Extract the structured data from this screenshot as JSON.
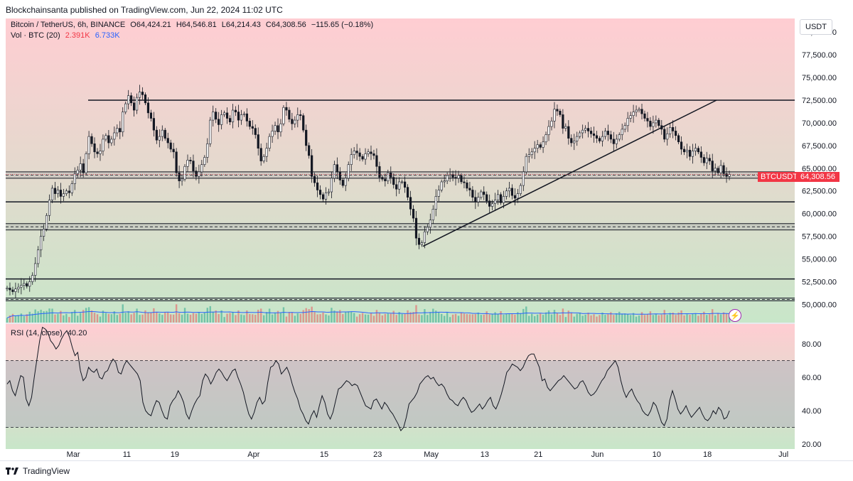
{
  "header": {
    "published": "Blockchainsanta published on TradingView.com, Jun 22, 2024 11:02 UTC"
  },
  "legend": {
    "symbol": "Bitcoin / TetherUS, 6h, BINANCE",
    "open": "O64,424.21",
    "high": "H64,546.81",
    "low": "L64,214.43",
    "close": "C64,308.56",
    "change": "−115.65 (−0.18%)",
    "vol_label": "Vol · BTC (20)",
    "vol_value": "2.391K",
    "vol_ma": "6.733K",
    "rsi_label": "RSI (14, close)",
    "rsi_value": "40.20"
  },
  "currency": "USDT",
  "last_price_tag": {
    "symbol": "BTCUSDT",
    "price": "64,308.56"
  },
  "footer": {
    "brand": "TradingView"
  },
  "colors": {
    "bullish": "#089981",
    "bearish": "#f23645",
    "vol_ma": "#2962ff",
    "zone_top": "#ffcdd2",
    "zone_bottom": "#c8e6c9",
    "rsi_band": "#b2b5be"
  },
  "chart_data": [
    {
      "type": "line",
      "name": "price",
      "x_ticks": [
        "Mar",
        "11",
        "19",
        "Apr",
        "15",
        "23",
        "May",
        "13",
        "21",
        "Jun",
        "10",
        "18",
        "Jul"
      ],
      "x_tick_index": [
        48,
        86,
        120,
        176,
        226,
        264,
        302,
        340,
        378,
        420,
        462,
        498,
        552
      ],
      "y_ticks": [
        "80,000.00",
        "77,500.00",
        "75,000.00",
        "72,500.00",
        "70,000.00",
        "67,500.00",
        "65,000.00",
        "62,500.00",
        "60,000.00",
        "57,500.00",
        "55,000.00",
        "52,500.00",
        "50,000.00"
      ],
      "ylim": [
        48000,
        81500
      ],
      "xlim": [
        0,
        560
      ],
      "close": [
        51800,
        51600,
        51400,
        51700,
        51900,
        52100,
        52300,
        52000,
        52500,
        53200,
        54500,
        56000,
        57500,
        58300,
        59800,
        61500,
        62800,
        62200,
        62600,
        61900,
        62200,
        62500,
        62300,
        63300,
        64400,
        64800,
        65500,
        64500,
        66600,
        68500,
        67700,
        66800,
        66600,
        66900,
        68200,
        68600,
        67800,
        68200,
        68900,
        69400,
        69000,
        71200,
        72100,
        73000,
        72200,
        71400,
        72800,
        73400,
        73100,
        72200,
        71100,
        70500,
        69200,
        68100,
        68500,
        69200,
        68300,
        67800,
        67100,
        66800,
        64500,
        63600,
        63800,
        65200,
        65900,
        65800,
        64700,
        64100,
        64600,
        65400,
        66200,
        67700,
        70300,
        71200,
        70400,
        69800,
        70900,
        71100,
        70500,
        70100,
        71400,
        71200,
        70300,
        70900,
        71000,
        70200,
        69600,
        69400,
        68700,
        67200,
        65800,
        66300,
        67200,
        68500,
        69100,
        69700,
        69000,
        69900,
        71700,
        71400,
        70400,
        69900,
        70300,
        70900,
        70800,
        69200,
        67500,
        66400,
        64100,
        63400,
        62600,
        62100,
        61600,
        62300,
        62400,
        63900,
        65400,
        64600,
        63700,
        63100,
        63900,
        65400,
        66500,
        66900,
        66700,
        66300,
        66000,
        66600,
        66800,
        66600,
        66400,
        65200,
        64000,
        63800,
        63600,
        64500,
        64000,
        63200,
        62700,
        63500,
        63500,
        62900,
        61800,
        60500,
        59500,
        57300,
        56600,
        56800,
        58000,
        58500,
        59300,
        60500,
        61900,
        62600,
        63500,
        63600,
        64200,
        64300,
        64000,
        63900,
        64200,
        63500,
        63400,
        62800,
        62600,
        61800,
        61300,
        61800,
        62400,
        62100,
        61400,
        60800,
        61100,
        61500,
        62100,
        61200,
        61900,
        62500,
        62800,
        62000,
        61700,
        62200,
        63100,
        64600,
        66300,
        66500,
        66800,
        67200,
        67600,
        67300,
        67900,
        68700,
        69600,
        70200,
        71500,
        71300,
        70900,
        69400,
        69600,
        68300,
        67800,
        68000,
        68500,
        68900,
        69200,
        69400,
        69100,
        68800,
        68600,
        68300,
        68000,
        68500,
        69100,
        68700,
        68200,
        67700,
        68200,
        68700,
        69300,
        69700,
        70500,
        70800,
        71200,
        71400,
        71500,
        71000,
        70500,
        70200,
        69600,
        70000,
        70300,
        69700,
        69300,
        68200,
        68800,
        69500,
        69100,
        68600,
        67900,
        67100,
        66800,
        67000,
        66300,
        66900,
        67200,
        66800,
        66200,
        65600,
        66100,
        65800,
        64700,
        65000,
        64500,
        65300,
        64400,
        64100,
        64308
      ],
      "annotations": {
        "resistance": 72500,
        "support_levels": [
          61300,
          52800
        ],
        "zones": [
          [
            63900,
            64600
          ],
          [
            58200,
            58900
          ],
          [
            50400,
            50700
          ]
        ],
        "trendline": [
          [
            587,
            56400
          ],
          [
            1000,
            72500
          ]
        ]
      }
    },
    {
      "type": "line",
      "name": "RSI (14, close)",
      "y_ticks": [
        "80.00",
        "60.00",
        "40.00",
        "20.00"
      ],
      "ylim": [
        17,
        92
      ],
      "band": [
        30,
        70
      ],
      "values": [
        56,
        58,
        52,
        49,
        55,
        61,
        60,
        47,
        43,
        48,
        60,
        71,
        82,
        90,
        89,
        87,
        82,
        80,
        77,
        79,
        83,
        86,
        88,
        84,
        78,
        73,
        75,
        64,
        58,
        60,
        66,
        64,
        63,
        65,
        60,
        59,
        63,
        64,
        68,
        71,
        69,
        63,
        62,
        67,
        70,
        68,
        66,
        64,
        62,
        58,
        45,
        40,
        38,
        37,
        42,
        46,
        45,
        40,
        36,
        35,
        43,
        46,
        48,
        52,
        49,
        45,
        38,
        35,
        40,
        44,
        47,
        49,
        58,
        62,
        60,
        56,
        59,
        63,
        65,
        63,
        60,
        58,
        61,
        64,
        65,
        60,
        56,
        51,
        44,
        38,
        35,
        39,
        45,
        48,
        44,
        46,
        57,
        66,
        67,
        70,
        68,
        62,
        64,
        66,
        62,
        56,
        51,
        47,
        41,
        38,
        34,
        32,
        37,
        40,
        36,
        43,
        49,
        45,
        38,
        35,
        39,
        46,
        53,
        54,
        56,
        58,
        57,
        55,
        56,
        55,
        51,
        47,
        43,
        42,
        41,
        46,
        47,
        44,
        41,
        45,
        43,
        40,
        38,
        35,
        32,
        28,
        30,
        36,
        44,
        46,
        48,
        51,
        56,
        58,
        60,
        61,
        59,
        60,
        57,
        55,
        56,
        54,
        50,
        47,
        46,
        44,
        43,
        46,
        48,
        46,
        42,
        39,
        40,
        42,
        44,
        41,
        43,
        46,
        48,
        43,
        41,
        45,
        50,
        56,
        63,
        65,
        68,
        67,
        66,
        64,
        66,
        70,
        73,
        74,
        74,
        70,
        66,
        58,
        59,
        54,
        52,
        54,
        56,
        58,
        59,
        61,
        59,
        57,
        55,
        53,
        54,
        57,
        58,
        55,
        51,
        49,
        50,
        52,
        55,
        58,
        60,
        64,
        66,
        68,
        70,
        66,
        58,
        52,
        48,
        51,
        53,
        49,
        46,
        44,
        40,
        38,
        37,
        40,
        45,
        43,
        38,
        33,
        31,
        35,
        46,
        52,
        47,
        41,
        38,
        40,
        43,
        39,
        36,
        38,
        40,
        42,
        38,
        35,
        34,
        36,
        40,
        38,
        42,
        40,
        35,
        36,
        40
      ]
    }
  ]
}
